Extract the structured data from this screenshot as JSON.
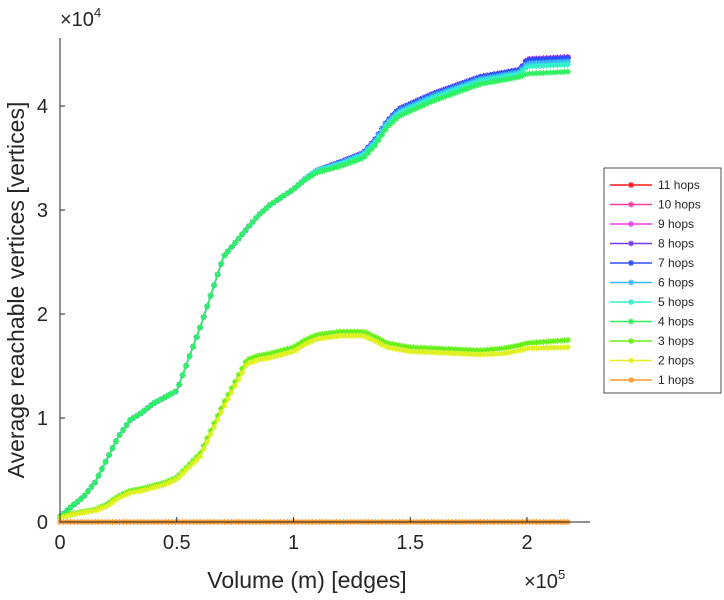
{
  "chart_data": {
    "type": "line",
    "title": "",
    "xlabel": "Volume (m) [edges]",
    "ylabel": "Average reachable vertices [vertices]",
    "x_multiplier_label": "×10",
    "x_multiplier_exp": "5",
    "y_multiplier_label": "×10",
    "y_multiplier_exp": "4",
    "xlim": [
      0,
      227000
    ],
    "ylim": [
      0,
      46500
    ],
    "xticks": [
      0,
      50000,
      100000,
      150000,
      200000
    ],
    "xtick_labels": [
      "0",
      "0.5",
      "1",
      "1.5",
      "2"
    ],
    "yticks": [
      0,
      10000,
      20000,
      30000,
      40000
    ],
    "ytick_labels": [
      "0",
      "1",
      "2",
      "3",
      "4"
    ],
    "grid": false,
    "legend_position": "outside-right",
    "x": [
      0,
      5000,
      10000,
      15000,
      20000,
      25000,
      30000,
      35000,
      40000,
      45000,
      50000,
      60000,
      70000,
      80000,
      85000,
      90000,
      100000,
      105000,
      110000,
      120000,
      130000,
      135000,
      140000,
      145000,
      150000,
      160000,
      170000,
      180000,
      190000,
      197000,
      200000,
      218000
    ],
    "series": [
      {
        "name": "11 hops",
        "color": "#ff1a1a",
        "values": [
          500,
          1500,
          2400,
          3800,
          6000,
          8200,
          9800,
          10500,
          11400,
          12000,
          12600,
          18700,
          25500,
          28200,
          29500,
          30500,
          32000,
          33000,
          33800,
          34600,
          35500,
          36800,
          38500,
          39700,
          40200,
          41200,
          42000,
          42800,
          43200,
          43500,
          44500,
          44700
        ]
      },
      {
        "name": "10 hops",
        "color": "#ff3d9e",
        "values": [
          500,
          1500,
          2400,
          3800,
          6000,
          8200,
          9800,
          10500,
          11400,
          12000,
          12600,
          18700,
          25500,
          28200,
          29500,
          30500,
          32000,
          33000,
          33800,
          34600,
          35500,
          36800,
          38500,
          39700,
          40200,
          41200,
          42000,
          42800,
          43200,
          43500,
          44500,
          44700
        ]
      },
      {
        "name": "9 hops",
        "color": "#f03cf0",
        "values": [
          500,
          1500,
          2400,
          3800,
          6000,
          8200,
          9800,
          10500,
          11400,
          12000,
          12600,
          18700,
          25500,
          28200,
          29500,
          30500,
          32000,
          33000,
          33800,
          34600,
          35500,
          36800,
          38500,
          39700,
          40200,
          41200,
          42000,
          42800,
          43200,
          43500,
          44500,
          44700
        ]
      },
      {
        "name": "8 hops",
        "color": "#7a3cf0",
        "values": [
          500,
          1500,
          2400,
          3800,
          6000,
          8200,
          9800,
          10500,
          11400,
          12000,
          12600,
          18700,
          25500,
          28200,
          29500,
          30500,
          32000,
          33000,
          33800,
          34600,
          35500,
          36800,
          38500,
          39700,
          40200,
          41200,
          42000,
          42800,
          43200,
          43500,
          44500,
          44700
        ]
      },
      {
        "name": "7 hops",
        "color": "#2a4dff",
        "values": [
          500,
          1500,
          2400,
          3800,
          6000,
          8200,
          9800,
          10500,
          11400,
          12000,
          12600,
          18700,
          25500,
          28200,
          29500,
          30500,
          32000,
          33000,
          33800,
          34600,
          35500,
          36800,
          38500,
          39700,
          40200,
          41200,
          42000,
          42800,
          43200,
          43500,
          44400,
          44600
        ]
      },
      {
        "name": "6 hops",
        "color": "#38b8ff",
        "values": [
          500,
          1500,
          2400,
          3800,
          6000,
          8200,
          9800,
          10500,
          11400,
          12000,
          12600,
          18700,
          25500,
          28200,
          29500,
          30500,
          32000,
          33000,
          33800,
          34500,
          35400,
          36700,
          38400,
          39500,
          40000,
          41000,
          41800,
          42600,
          43000,
          43300,
          44100,
          44300
        ]
      },
      {
        "name": "5 hops",
        "color": "#33f0c8",
        "values": [
          500,
          1500,
          2400,
          3800,
          6000,
          8200,
          9800,
          10500,
          11400,
          12000,
          12600,
          18700,
          25500,
          28200,
          29500,
          30500,
          32000,
          33000,
          33800,
          34400,
          35300,
          36500,
          38200,
          39300,
          39800,
          40800,
          41600,
          42400,
          42800,
          43100,
          43800,
          44000
        ]
      },
      {
        "name": "4 hops",
        "color": "#2ef060",
        "values": [
          500,
          1500,
          2400,
          3800,
          6000,
          8200,
          9800,
          10500,
          11400,
          12000,
          12600,
          18700,
          25500,
          28200,
          29500,
          30500,
          32000,
          32900,
          33600,
          34200,
          35000,
          36200,
          37900,
          39000,
          39500,
          40500,
          41300,
          42100,
          42500,
          42800,
          43100,
          43300
        ]
      },
      {
        "name": "3 hops",
        "color": "#66f01a",
        "values": [
          500,
          800,
          1000,
          1200,
          1700,
          2500,
          3000,
          3200,
          3500,
          3800,
          4300,
          6600,
          11400,
          15600,
          16000,
          16200,
          16800,
          17500,
          18000,
          18300,
          18300,
          17800,
          17200,
          17000,
          16800,
          16700,
          16600,
          16500,
          16700,
          17000,
          17200,
          17500
        ]
      },
      {
        "name": "2 hops",
        "color": "#e0f020",
        "values": [
          400,
          700,
          900,
          1100,
          1500,
          2300,
          2800,
          3000,
          3300,
          3600,
          4100,
          6300,
          11000,
          15200,
          15600,
          15800,
          16400,
          17100,
          17600,
          17900,
          17900,
          17400,
          16800,
          16600,
          16400,
          16300,
          16200,
          16100,
          16200,
          16500,
          16700,
          16800
        ]
      },
      {
        "name": "1 hops",
        "color": "#ff9a2e",
        "values": [
          0,
          0,
          0,
          0,
          0,
          0,
          0,
          0,
          0,
          0,
          0,
          0,
          0,
          0,
          0,
          0,
          0,
          0,
          0,
          0,
          0,
          0,
          0,
          0,
          0,
          0,
          0,
          0,
          0,
          0,
          0,
          0
        ]
      }
    ]
  }
}
